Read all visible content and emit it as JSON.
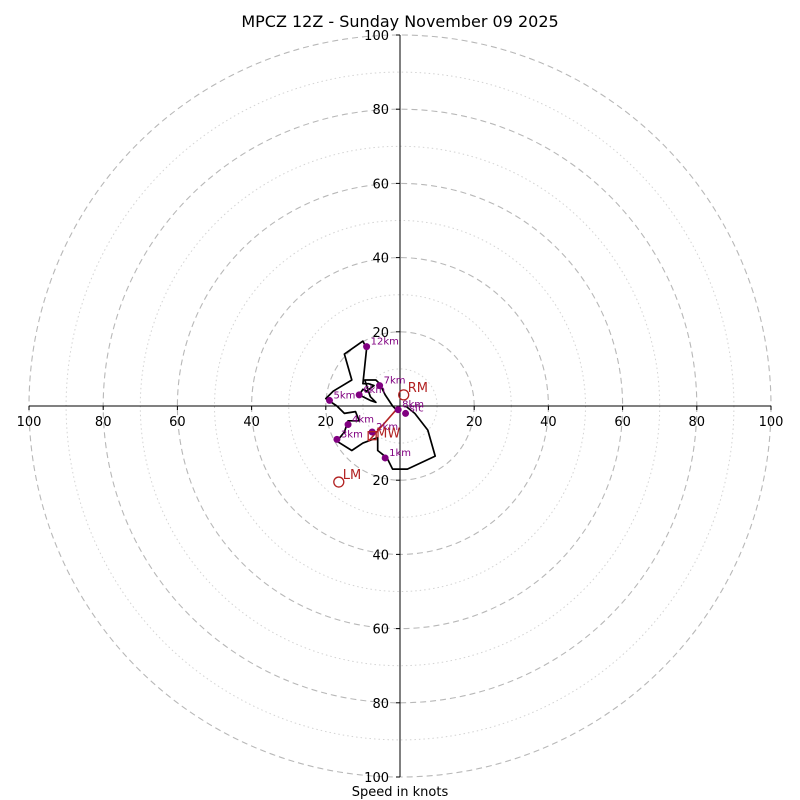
{
  "chart_data": {
    "type": "scatter",
    "subtype": "hodograph",
    "title": "MPCZ 12Z - Sunday November 09 2025",
    "xlabel": "Speed in knots",
    "ylabel": "",
    "xlim": [
      -100,
      100
    ],
    "ylim": [
      -100,
      100
    ],
    "rings_major": [
      20,
      40,
      60,
      80,
      100
    ],
    "rings_minor": [
      10,
      30,
      50,
      70,
      90
    ],
    "x_tick_labels": [
      "100",
      "80",
      "60",
      "40",
      "20",
      "",
      "20",
      "40",
      "60",
      "80",
      "100"
    ],
    "x_tick_values": [
      -100,
      -80,
      -60,
      -40,
      -20,
      0,
      20,
      40,
      60,
      80,
      100
    ],
    "y_tick_labels_top": [
      "20",
      "40",
      "60",
      "80",
      "100"
    ],
    "y_tick_labels_bottom": [
      "20",
      "40",
      "60",
      "80",
      "100"
    ],
    "hodograph_line": {
      "color": "#000000",
      "points": [
        [
          1.5,
          0
        ],
        [
          4,
          -2
        ],
        [
          7.5,
          -6.5
        ],
        [
          9.5,
          -13.5
        ],
        [
          2,
          -17
        ],
        [
          -2,
          -17
        ],
        [
          -3.5,
          -14
        ],
        [
          -6,
          -12
        ],
        [
          -6,
          -8.5
        ],
        [
          -10,
          -10
        ],
        [
          -13,
          -12
        ],
        [
          -17,
          -9.5
        ],
        [
          -15,
          -7
        ],
        [
          -14,
          -4
        ],
        [
          -11,
          -4
        ],
        [
          -12,
          -1.5
        ],
        [
          -15,
          -2
        ],
        [
          -17,
          0
        ],
        [
          -20,
          2
        ],
        [
          -18,
          4
        ],
        [
          -13,
          7
        ],
        [
          -15,
          14
        ],
        [
          -10,
          17.5
        ],
        [
          -9,
          15.5
        ],
        [
          -10,
          6
        ],
        [
          -8.5,
          6
        ],
        [
          -7,
          5.5
        ],
        [
          -9,
          4
        ],
        [
          -10,
          4.5
        ],
        [
          -11,
          3
        ],
        [
          -8,
          1.5
        ],
        [
          -6.5,
          1
        ],
        [
          -8,
          2.5
        ],
        [
          -9.5,
          7
        ],
        [
          -6.5,
          7
        ],
        [
          -5.5,
          6
        ],
        [
          -4,
          3
        ],
        [
          -2,
          0
        ],
        [
          -1,
          -1
        ]
      ]
    },
    "height_points": [
      {
        "label": "sfc",
        "x": 1.5,
        "y": -2
      },
      {
        "label": "1km",
        "x": -4,
        "y": -14
      },
      {
        "label": "2km",
        "x": -7.5,
        "y": -7
      },
      {
        "label": "3km",
        "x": -17,
        "y": -9
      },
      {
        "label": "4km",
        "x": -14,
        "y": -5
      },
      {
        "label": "5km",
        "x": -19,
        "y": 1.5
      },
      {
        "label": "6km",
        "x": -11,
        "y": 3
      },
      {
        "label": "7km",
        "x": -5.5,
        "y": 5.5
      },
      {
        "label": "8km",
        "x": -0.5,
        "y": -1
      },
      {
        "label": "12km",
        "x": -9,
        "y": 16
      }
    ],
    "markers": [
      {
        "label": "RM",
        "x": 1,
        "y": 3
      },
      {
        "label": "LM",
        "x": -16.5,
        "y": -20.5
      },
      {
        "label": "MW",
        "x": -7.5,
        "y": -8
      }
    ],
    "shear_line": {
      "color": "#b22222",
      "from": [
        -1,
        -1
      ],
      "to": [
        -8.5,
        -9.5
      ]
    },
    "colors": {
      "hodograph": "#000000",
      "points": "#800080",
      "markers": "#b22222",
      "rings": "#b8b8b8",
      "minor_rings": "#d3d3d3",
      "axes": "#000000"
    }
  }
}
